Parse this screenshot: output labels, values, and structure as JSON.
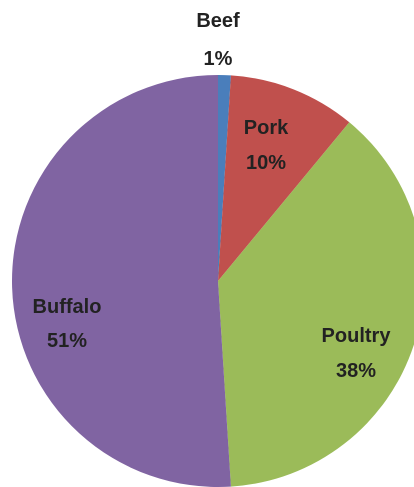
{
  "chart_data": {
    "type": "pie",
    "title": "",
    "slices": [
      {
        "name": "Beef",
        "value": 1,
        "label": "1%",
        "color": "#4a7ebb"
      },
      {
        "name": "Pork",
        "value": 10,
        "label": "10%",
        "color": "#c0504d"
      },
      {
        "name": "Poultry",
        "value": 38,
        "label": "38%",
        "color": "#9bbb59"
      },
      {
        "name": "Buffalo",
        "value": 51,
        "label": "51%",
        "color": "#8064a2"
      }
    ],
    "start_angle": "12 o'clock",
    "direction": "clockwise",
    "legend": "none",
    "label_style": "category name and percentage"
  }
}
